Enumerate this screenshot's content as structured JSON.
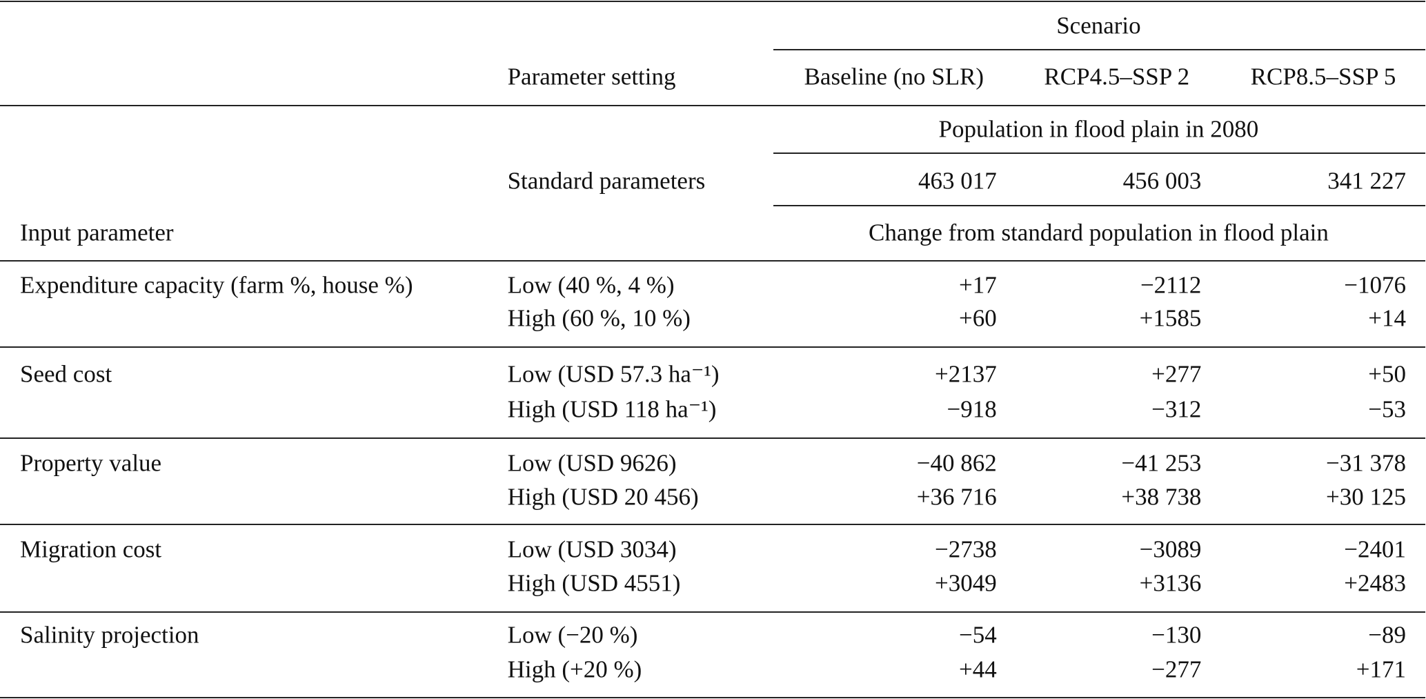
{
  "header": {
    "scenario": "Scenario",
    "parameter_setting": "Parameter setting",
    "scenarios": [
      "Baseline (no SLR)",
      "RCP4.5–SSP 2",
      "RCP8.5–SSP 5"
    ],
    "population_title": "Population in flood plain in 2080",
    "standard_label": "Standard parameters",
    "standard_values": [
      "463 017",
      "456 003",
      "341 227"
    ],
    "input_parameter": "Input parameter",
    "change_title": "Change from standard population in flood plain"
  },
  "groups": [
    {
      "parameter": "Expenditure capacity (farm %, house %)",
      "rows": [
        {
          "setting": "Low (40 %, 4 %)",
          "values": [
            "+17",
            "−2112",
            "−1076"
          ]
        },
        {
          "setting": "High (60 %, 10 %)",
          "values": [
            "+60",
            "+1585",
            "+14"
          ]
        }
      ]
    },
    {
      "parameter": "Seed cost",
      "rows": [
        {
          "setting": "Low (USD 57.3 ha⁻¹)",
          "values": [
            "+2137",
            "+277",
            "+50"
          ]
        },
        {
          "setting": "High (USD 118 ha⁻¹)",
          "values": [
            "−918",
            "−312",
            "−53"
          ]
        }
      ]
    },
    {
      "parameter": "Property value",
      "rows": [
        {
          "setting": "Low (USD 9626)",
          "values": [
            "−40 862",
            "−41 253",
            "−31 378"
          ]
        },
        {
          "setting": "High (USD 20 456)",
          "values": [
            "+36 716",
            "+38 738",
            "+30 125"
          ]
        }
      ]
    },
    {
      "parameter": "Migration cost",
      "rows": [
        {
          "setting": "Low (USD 3034)",
          "values": [
            "−2738",
            "−3089",
            "−2401"
          ]
        },
        {
          "setting": "High (USD 4551)",
          "values": [
            "+3049",
            "+3136",
            "+2483"
          ]
        }
      ]
    },
    {
      "parameter": "Salinity projection",
      "rows": [
        {
          "setting": "Low (−20 %)",
          "values": [
            "−54",
            "−130",
            "−89"
          ]
        },
        {
          "setting": "High (+20 %)",
          "values": [
            "+44",
            "−277",
            "+171"
          ]
        }
      ]
    }
  ]
}
